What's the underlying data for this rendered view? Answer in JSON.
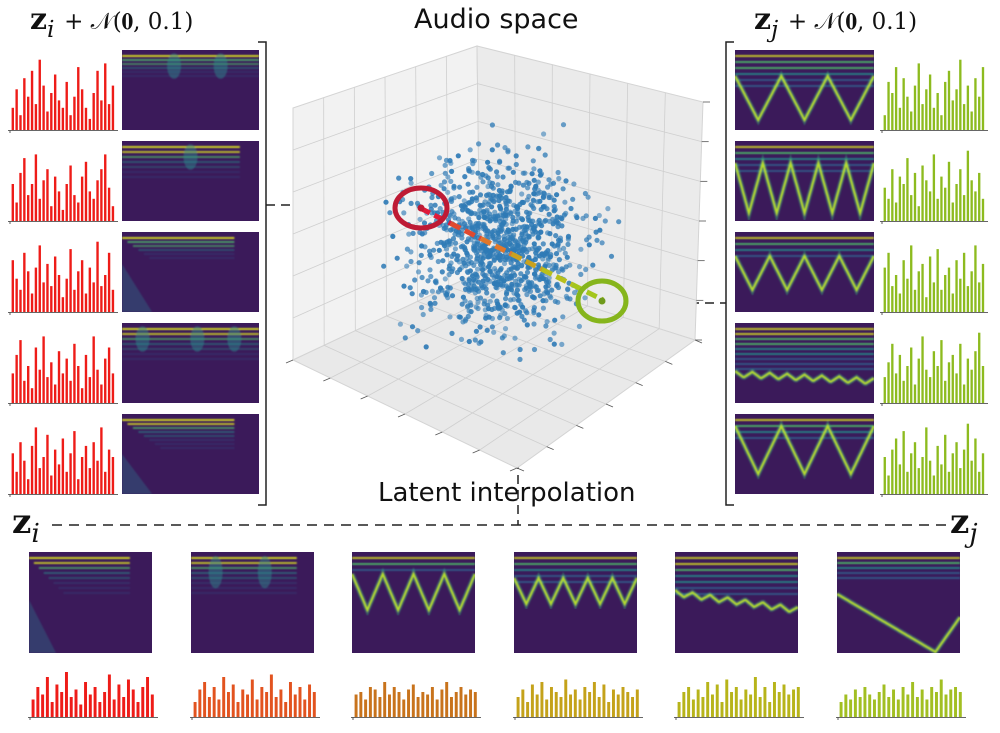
{
  "titles": {
    "audio_space": "Audio space",
    "latent_interpolation": "Latent interpolation"
  },
  "labels": {
    "left_noise_prefix": "z",
    "left_noise_index": "i",
    "left_noise_suffix": "+ 𝒩(𝟎, 0.1)",
    "right_noise_prefix": "z",
    "right_noise_index": "j",
    "right_noise_suffix": "+ 𝒩(𝟎, 0.1)",
    "point_i_prefix": "z",
    "point_i_index": "i",
    "point_j_prefix": "z",
    "point_j_index": "j",
    "interp_start_prefix": "z",
    "interp_start_index": "i",
    "interp_end_prefix": "z",
    "interp_end_index": "j"
  },
  "colors": {
    "red": "#ee1c18",
    "orange_red": "#e2531f",
    "orange": "#c8731c",
    "olive_orange": "#c4a21a",
    "olive": "#b7b41a",
    "yellow_green": "#a2bf22",
    "green": "#8dbb1f",
    "ring_i": "#be1a34",
    "ring_j": "#86b51c",
    "point": "#2f7bb6"
  },
  "bar_heights": {
    "left": [
      [
        0.3,
        0.55,
        0.2,
        0.7,
        0.45,
        0.8,
        0.35,
        0.95,
        0.6,
        0.25,
        0.5,
        0.75,
        0.4,
        0.3,
        0.65,
        0.2,
        0.45,
        0.85,
        0.55,
        0.3,
        0.15,
        0.5,
        0.8,
        0.4,
        0.9,
        0.35,
        0.6
      ],
      [
        0.5,
        0.25,
        0.65,
        0.85,
        0.35,
        0.5,
        0.9,
        0.3,
        0.55,
        0.7,
        0.2,
        0.6,
        0.4,
        0.15,
        0.5,
        0.75,
        0.35,
        0.25,
        0.6,
        0.8,
        0.4,
        0.3,
        0.55,
        0.7,
        0.9,
        0.45,
        0.2
      ],
      [
        0.7,
        0.45,
        0.3,
        0.8,
        0.55,
        0.25,
        0.6,
        0.9,
        0.4,
        0.65,
        0.35,
        0.75,
        0.5,
        0.2,
        0.45,
        0.85,
        0.3,
        0.55,
        0.7,
        0.25,
        0.6,
        0.4,
        0.95,
        0.35,
        0.5,
        0.8,
        0.3
      ],
      [
        0.4,
        0.65,
        0.85,
        0.3,
        0.5,
        0.2,
        0.75,
        0.45,
        0.9,
        0.35,
        0.55,
        0.25,
        0.7,
        0.4,
        0.6,
        0.3,
        0.8,
        0.5,
        0.2,
        0.65,
        0.35,
        0.9,
        0.45,
        0.25,
        0.6,
        0.75,
        0.4
      ],
      [
        0.55,
        0.3,
        0.7,
        0.45,
        0.2,
        0.65,
        0.9,
        0.35,
        0.5,
        0.8,
        0.25,
        0.6,
        0.4,
        0.75,
        0.3,
        0.55,
        0.85,
        0.2,
        0.5,
        0.65,
        0.35,
        0.7,
        0.45,
        0.9,
        0.3,
        0.6,
        0.5
      ]
    ],
    "right": [
      [
        0.2,
        0.65,
        0.5,
        0.85,
        0.3,
        0.7,
        0.45,
        0.25,
        0.6,
        0.9,
        0.35,
        0.55,
        0.75,
        0.3,
        0.5,
        0.2,
        0.65,
        0.8,
        0.4,
        0.55,
        0.95,
        0.35,
        0.6,
        0.25,
        0.7,
        0.45,
        0.85
      ],
      [
        0.45,
        0.3,
        0.7,
        0.25,
        0.6,
        0.5,
        0.85,
        0.35,
        0.65,
        0.2,
        0.75,
        0.55,
        0.4,
        0.9,
        0.3,
        0.6,
        0.45,
        0.8,
        0.25,
        0.5,
        0.7,
        0.35,
        0.95,
        0.55,
        0.4,
        0.65,
        0.3
      ],
      [
        0.6,
        0.8,
        0.35,
        0.5,
        0.25,
        0.7,
        0.45,
        0.9,
        0.3,
        0.55,
        0.65,
        0.2,
        0.75,
        0.4,
        0.85,
        0.3,
        0.5,
        0.6,
        0.25,
        0.7,
        0.45,
        0.8,
        0.35,
        0.55,
        0.9,
        0.4,
        0.65
      ],
      [
        0.35,
        0.55,
        0.8,
        0.4,
        0.65,
        0.3,
        0.5,
        0.75,
        0.25,
        0.6,
        0.9,
        0.45,
        0.35,
        0.7,
        0.5,
        0.85,
        0.3,
        0.55,
        0.65,
        0.4,
        0.8,
        0.25,
        0.6,
        0.45,
        0.7,
        0.95,
        0.5
      ],
      [
        0.5,
        0.25,
        0.6,
        0.75,
        0.4,
        0.85,
        0.3,
        0.55,
        0.7,
        0.35,
        0.5,
        0.9,
        0.45,
        0.25,
        0.65,
        0.4,
        0.8,
        0.3,
        0.55,
        0.7,
        0.35,
        0.6,
        0.95,
        0.45,
        0.75,
        0.3,
        0.55
      ]
    ],
    "bottom": [
      [
        0.35,
        0.6,
        0.45,
        0.8,
        0.3,
        0.65,
        0.5,
        0.9,
        0.4,
        0.55,
        0.25,
        0.7,
        0.45,
        0.6,
        0.3,
        0.5,
        0.85,
        0.35,
        0.65,
        0.4,
        0.75,
        0.55,
        0.3,
        0.6,
        0.8,
        0.45
      ],
      [
        0.3,
        0.55,
        0.7,
        0.4,
        0.6,
        0.35,
        0.8,
        0.5,
        0.65,
        0.3,
        0.55,
        0.45,
        0.75,
        0.35,
        0.6,
        0.5,
        0.85,
        0.4,
        0.55,
        0.3,
        0.7,
        0.45,
        0.6,
        0.35,
        0.65,
        0.5
      ],
      [
        0.45,
        0.5,
        0.35,
        0.6,
        0.55,
        0.4,
        0.7,
        0.45,
        0.6,
        0.5,
        0.35,
        0.55,
        0.65,
        0.4,
        0.5,
        0.45,
        0.6,
        0.35,
        0.55,
        0.7,
        0.4,
        0.5,
        0.6,
        0.45,
        0.55,
        0.5
      ],
      [
        0.4,
        0.55,
        0.3,
        0.65,
        0.45,
        0.7,
        0.35,
        0.6,
        0.5,
        0.4,
        0.75,
        0.45,
        0.55,
        0.35,
        0.6,
        0.5,
        0.7,
        0.4,
        0.65,
        0.3,
        0.55,
        0.45,
        0.6,
        0.5,
        0.4,
        0.55
      ],
      [
        0.3,
        0.5,
        0.6,
        0.35,
        0.55,
        0.4,
        0.7,
        0.45,
        0.65,
        0.3,
        0.75,
        0.5,
        0.6,
        0.35,
        0.55,
        0.45,
        0.8,
        0.4,
        0.6,
        0.3,
        0.7,
        0.5,
        0.65,
        0.45,
        0.55,
        0.6
      ],
      [
        0.3,
        0.45,
        0.35,
        0.55,
        0.4,
        0.6,
        0.45,
        0.35,
        0.5,
        0.65,
        0.4,
        0.55,
        0.35,
        0.6,
        0.45,
        0.7,
        0.4,
        0.55,
        0.35,
        0.6,
        0.5,
        0.75,
        0.45,
        0.55,
        0.6,
        0.5
      ]
    ]
  }
}
